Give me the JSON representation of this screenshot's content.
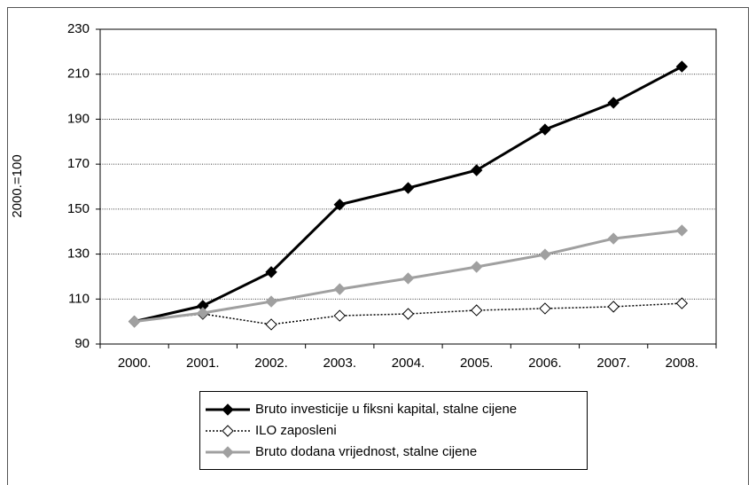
{
  "chart_data": {
    "type": "line",
    "ylabel": "2000.=100",
    "categories": [
      "2000.",
      "2001.",
      "2002.",
      "2003.",
      "2004.",
      "2005.",
      "2006.",
      "2007.",
      "2008."
    ],
    "series": [
      {
        "name": "Bruto investicije u fiksni kapital, stalne cijene",
        "color": "#000000",
        "line": "solid",
        "marker": "filled",
        "values": [
          100,
          107,
          122,
          152,
          159.4,
          167.3,
          185.4,
          197.3,
          213.4
        ]
      },
      {
        "name": "ILO zaposleni",
        "color": "#000000",
        "line": "dotted",
        "marker": "open",
        "values": [
          100,
          103.4,
          98.7,
          102.6,
          103.4,
          105,
          105.8,
          106.6,
          108.1
        ]
      },
      {
        "name": "Bruto dodana vrijednost, stalne cijene",
        "color": "#a0a0a0",
        "line": "solid",
        "marker": "filled",
        "values": [
          100,
          103.8,
          108.9,
          114.4,
          119.2,
          124.3,
          129.8,
          136.9,
          140.5
        ]
      }
    ],
    "ylim": [
      90,
      230
    ],
    "yticks": [
      90,
      110,
      130,
      150,
      170,
      190,
      210,
      230
    ],
    "grid": true
  }
}
